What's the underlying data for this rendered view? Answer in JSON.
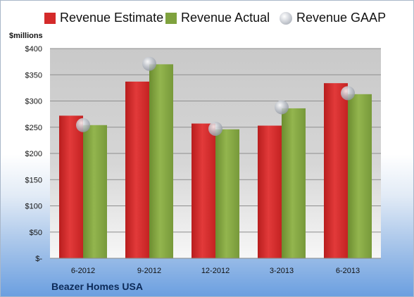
{
  "legend": {
    "estimate": "Revenue Estimate",
    "actual": "Revenue Actual",
    "gaap": "Revenue GAAP"
  },
  "unit_label": "$millions",
  "company": "Beazer Homes USA",
  "colors": {
    "estimate": "#d42a2a",
    "actual": "#7fa23e",
    "gaap": "#b4b9c2"
  },
  "chart_data": {
    "type": "bar",
    "categories": [
      "6-2012",
      "9-2012",
      "12-2012",
      "3-2013",
      "6-2013"
    ],
    "series": [
      {
        "name": "Revenue Estimate",
        "values": [
          272,
          337,
          257,
          253,
          334
        ]
      },
      {
        "name": "Revenue Actual",
        "values": [
          254,
          370,
          246,
          286,
          313
        ]
      },
      {
        "name": "Revenue GAAP",
        "values": [
          254,
          371,
          247,
          288,
          315
        ]
      }
    ],
    "ylabel": "$millions",
    "ylim": [
      0,
      400
    ],
    "yticks": [
      0,
      50,
      100,
      150,
      200,
      250,
      300,
      350,
      400
    ],
    "ytick_labels": [
      "$-",
      "$50",
      "$100",
      "$150",
      "$200",
      "$250",
      "$300",
      "$350",
      "$400"
    ],
    "grid": true,
    "legend_position": "top"
  }
}
